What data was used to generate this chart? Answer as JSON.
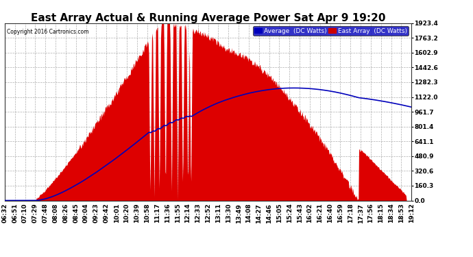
{
  "title": "East Array Actual & Running Average Power Sat Apr 9 19:20",
  "copyright": "Copyright 2016 Cartronics.com",
  "legend_labels": [
    "Average  (DC Watts)",
    "East Array  (DC Watts)"
  ],
  "legend_colors": [
    "#0000bb",
    "#cc0000"
  ],
  "legend_bg": [
    "#0000bb",
    "#cc0000"
  ],
  "y_ticks": [
    0.0,
    160.3,
    320.6,
    480.9,
    641.1,
    801.4,
    961.7,
    1122.0,
    1282.3,
    1442.6,
    1602.9,
    1763.2,
    1923.4
  ],
  "y_max": 1923.4,
  "background_color": "#ffffff",
  "plot_bg_color": "#ffffff",
  "grid_color": "#999999",
  "x_labels": [
    "06:32",
    "06:51",
    "07:10",
    "07:29",
    "07:48",
    "08:08",
    "08:26",
    "08:45",
    "09:04",
    "09:23",
    "09:42",
    "10:01",
    "10:20",
    "10:39",
    "10:58",
    "11:17",
    "11:36",
    "11:55",
    "12:14",
    "12:33",
    "12:52",
    "13:11",
    "13:30",
    "13:49",
    "14:08",
    "14:27",
    "14:46",
    "15:05",
    "15:24",
    "15:43",
    "16:02",
    "16:21",
    "16:40",
    "16:59",
    "17:18",
    "17:37",
    "17:56",
    "18:15",
    "18:34",
    "18:53",
    "19:12"
  ],
  "title_fontsize": 11,
  "axis_fontsize": 6.5,
  "fill_color": "#dd0000",
  "line_color": "#0000bb",
  "fill_alpha": 1.0
}
